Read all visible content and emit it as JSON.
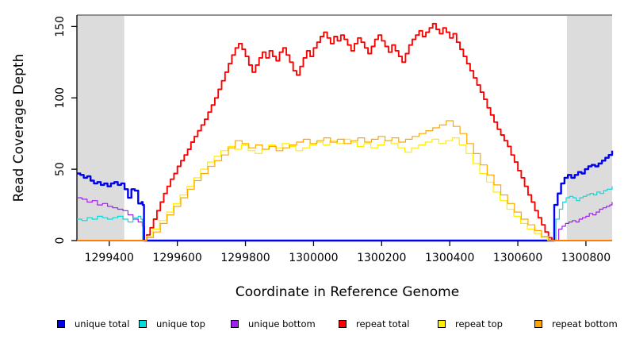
{
  "chart_data": {
    "type": "line",
    "title": "",
    "xlabel": "Coordinate in Reference Genome",
    "ylabel": "Read Coverage Depth",
    "grid": false,
    "background": "#FFFFFF",
    "axis_color": "#000000",
    "frame_top_color": "#848484",
    "band_color": "#DCDCDC",
    "x_domain": [
      1299305,
      1300877
    ],
    "y_domain": [
      0,
      158
    ],
    "x_tick_values": [
      1299400,
      1299600,
      1299800,
      1300000,
      1300200,
      1300400,
      1300600,
      1300800
    ],
    "x_tick_labels": [
      "1299400",
      "1299600",
      "1299800",
      "1300000",
      "1300200",
      "1300400",
      "1300600",
      "1300800"
    ],
    "y_tick_values": [
      0,
      50,
      100,
      150
    ],
    "y_tick_labels": [
      "0",
      "50",
      "100",
      "150"
    ],
    "shaded_regions": [
      {
        "from": 1299305,
        "to": 1299444
      },
      {
        "from": 1300744,
        "to": 1300877
      }
    ],
    "legend_position": "bottom",
    "series": [
      {
        "name": "unique bottom",
        "color": "#A020F0",
        "width": 1.2,
        "segments": [
          {
            "x0": 1299305,
            "dx": 15,
            "y": [
              30,
              29,
              27,
              28,
              25,
              26,
              24,
              23,
              22,
              21,
              18,
              15,
              13
            ]
          },
          {
            "x0": 1299497,
            "dx": 7,
            "y": [
              10,
              0
            ]
          },
          {
            "x0": 1300716,
            "dx": 1,
            "y": [
              0
            ]
          },
          {
            "x0": 1300720,
            "dx": 10,
            "y": [
              8,
              10,
              12,
              13,
              14,
              13,
              15,
              16,
              17,
              19,
              18,
              20,
              22,
              23,
              24,
              25
            ]
          },
          {
            "x0": 1300877,
            "dx": 1,
            "y": [
              27
            ]
          }
        ]
      },
      {
        "name": "unique top",
        "color": "#00DCDC",
        "width": 1.2,
        "segments": [
          {
            "x0": 1299305,
            "dx": 15,
            "y": [
              15,
              14,
              16,
              15,
              17,
              16,
              15,
              16,
              17,
              15,
              13,
              16,
              17
            ]
          },
          {
            "x0": 1299493,
            "dx": 5,
            "y": [
              15,
              0
            ]
          },
          {
            "x0": 1300708,
            "dx": 1,
            "y": [
              0
            ]
          },
          {
            "x0": 1300712,
            "dx": 10,
            "y": [
              15,
              22,
              27,
              30,
              31,
              30,
              28,
              30,
              31,
              32,
              33,
              32,
              34,
              33,
              35,
              36
            ]
          },
          {
            "x0": 1300877,
            "dx": 1,
            "y": [
              38
            ]
          }
        ]
      },
      {
        "name": "unique total",
        "color": "#0000EE",
        "width": 2.4,
        "segments": [
          {
            "x0": 1299305,
            "dx": 10,
            "y": [
              47,
              46,
              44,
              45,
              42,
              40,
              41,
              39,
              40,
              38,
              40,
              41,
              39,
              40,
              36,
              30,
              36,
              35,
              26,
              27
            ]
          },
          {
            "x0": 1299498,
            "dx": 4,
            "y": [
              25,
              0
            ]
          },
          {
            "x0": 1300703,
            "dx": 1,
            "y": [
              0
            ]
          },
          {
            "x0": 1300707,
            "dx": 10,
            "y": [
              25,
              33,
              40,
              44,
              46,
              44,
              46,
              48,
              47,
              50,
              52,
              53,
              52,
              54,
              56,
              58,
              60
            ]
          },
          {
            "x0": 1300877,
            "dx": 1,
            "y": [
              63
            ]
          }
        ]
      },
      {
        "name": "repeat total",
        "color": "#FF0000",
        "width": 1.9,
        "segments": [
          {
            "x0": 1299305,
            "dx": 200,
            "y": [
              0,
              0
            ]
          },
          {
            "x0": 1299510,
            "dx": 10,
            "y": [
              4,
              9,
              15,
              21,
              27,
              33,
              38,
              43,
              47,
              52,
              56,
              60,
              64,
              69,
              73,
              77,
              81,
              85,
              90,
              95,
              100,
              106,
              112,
              118,
              124,
              130,
              135,
              138,
              134,
              129,
              123,
              118,
              123,
              128,
              132,
              128,
              133,
              129,
              126,
              132,
              135,
              130,
              125,
              119,
              116,
              122,
              128,
              133,
              129,
              135,
              139,
              143,
              146,
              142,
              138,
              143,
              140,
              144,
              141,
              137,
              133,
              138,
              142,
              139,
              135,
              131,
              136,
              141,
              144,
              140,
              136,
              132,
              137,
              133,
              129,
              125,
              131,
              137,
              141,
              144,
              147,
              143,
              146,
              149,
              152,
              148,
              145,
              149,
              146,
              142,
              145,
              139,
              134,
              129,
              124,
              119,
              114,
              109,
              104,
              99,
              93,
              88,
              83,
              78,
              74,
              70,
              66,
              60,
              55,
              49,
              44,
              38,
              32,
              27,
              21,
              16,
              11,
              6,
              2,
              0
            ]
          },
          {
            "x0": 1300877,
            "dx": 1,
            "y": [
              0
            ]
          }
        ]
      },
      {
        "name": "repeat top",
        "color": "#FFEE00",
        "width": 1.2,
        "segments": [
          {
            "x0": 1299305,
            "dx": 200,
            "y": [
              0,
              0
            ]
          },
          {
            "x0": 1299508,
            "dx": 20,
            "y": [
              3,
              8,
              14,
              20,
              26,
              32,
              38,
              44,
              50,
              55,
              59,
              63,
              66,
              64,
              67,
              63,
              61,
              64,
              67,
              65,
              68,
              66,
              63,
              65,
              67,
              69,
              67,
              70,
              68,
              71,
              69,
              66,
              68,
              65,
              67,
              70,
              68,
              65,
              62,
              65,
              67,
              69,
              71,
              68,
              70,
              72,
              67,
              61,
              54,
              47,
              41,
              34,
              28,
              22,
              17,
              12,
              8,
              5,
              2,
              0
            ]
          },
          {
            "x0": 1300877,
            "dx": 1,
            "y": [
              0
            ]
          }
        ]
      },
      {
        "name": "repeat bottom",
        "color": "#FFA500",
        "width": 1.2,
        "segments": [
          {
            "x0": 1299305,
            "dx": 200,
            "y": [
              0,
              0
            ]
          },
          {
            "x0": 1299510,
            "dx": 20,
            "y": [
              2,
              6,
              12,
              18,
              24,
              30,
              36,
              42,
              47,
              52,
              56,
              60,
              65,
              70,
              68,
              65,
              67,
              64,
              66,
              63,
              65,
              67,
              69,
              71,
              68,
              70,
              72,
              69,
              71,
              68,
              70,
              72,
              69,
              71,
              73,
              70,
              72,
              69,
              71,
              73,
              75,
              77,
              79,
              81,
              84,
              80,
              75,
              68,
              61,
              53,
              46,
              39,
              32,
              26,
              20,
              15,
              11,
              7,
              3,
              0
            ]
          },
          {
            "x0": 1300877,
            "dx": 1,
            "y": [
              0
            ]
          }
        ]
      }
    ],
    "legend": {
      "items": [
        {
          "label": "unique total",
          "color": "#0000EE"
        },
        {
          "label": "unique top",
          "color": "#00DCDC"
        },
        {
          "label": "unique bottom",
          "color": "#A020F0"
        },
        {
          "label": "repeat total",
          "color": "#FF0000"
        },
        {
          "label": "repeat top",
          "color": "#FFEE00"
        },
        {
          "label": "repeat bottom",
          "color": "#FFA500"
        }
      ]
    }
  }
}
